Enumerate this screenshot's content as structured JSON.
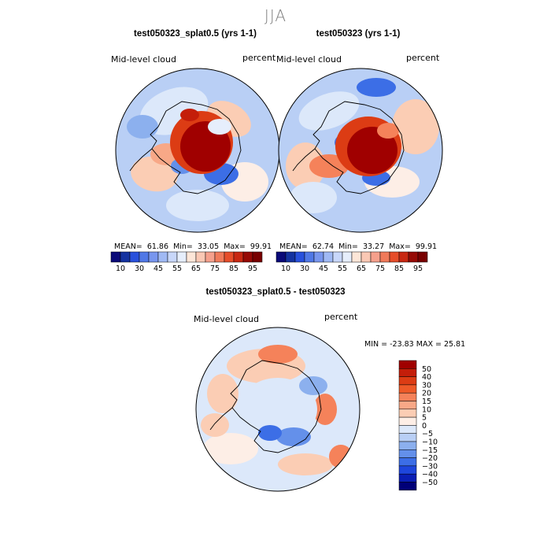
{
  "season": "JJA",
  "panels": [
    {
      "title": "test050323_splat0.5 (yrs 1-1)",
      "variable": "Mid-level cloud",
      "units": "percent",
      "stats": {
        "mean_label": "MEAN=",
        "mean": "61.86",
        "min_label": "Min=",
        "min": "33.05",
        "max_label": "Max=",
        "max": "99.91"
      }
    },
    {
      "title": "test050323 (yrs 1-1)",
      "variable": "Mid-level cloud",
      "units": "percent",
      "stats": {
        "mean_label": "MEAN=",
        "mean": "62.74",
        "min_label": "Min=",
        "min": "33.27",
        "max_label": "Max=",
        "max": "99.91"
      }
    },
    {
      "title": "test050323_splat0.5 - test050323",
      "variable": "Mid-level cloud",
      "units": "percent",
      "stats_line": "MIN = -23.83  MAX =  25.81"
    }
  ],
  "chart_data": [
    {
      "type": "heatmap",
      "projection": "south polar stereographic",
      "title": "test050323_splat0.5 (yrs 1-1)",
      "variable": "Mid-level cloud",
      "units": "percent",
      "mean": 61.86,
      "min": 33.05,
      "max": 99.91,
      "colorbar_levels": [
        10,
        30,
        45,
        55,
        65,
        75,
        85,
        95
      ],
      "colorbar_labels": [
        "10",
        "30",
        "45",
        "55",
        "65",
        "75",
        "85",
        "95"
      ],
      "colorbar_colors": [
        "#0a0a78",
        "#1432a0",
        "#2850dc",
        "#5078e6",
        "#7896ee",
        "#a0b9f4",
        "#c8d7fa",
        "#e6eefc",
        "#fde6d8",
        "#fac8b4",
        "#f5a08c",
        "#f07a5a",
        "#e64d2a",
        "#c82812",
        "#960a05",
        "#780000"
      ]
    },
    {
      "type": "heatmap",
      "projection": "south polar stereographic",
      "title": "test050323 (yrs 1-1)",
      "variable": "Mid-level cloud",
      "units": "percent",
      "mean": 62.74,
      "min": 33.27,
      "max": 99.91,
      "colorbar_levels": [
        10,
        30,
        45,
        55,
        65,
        75,
        85,
        95
      ],
      "colorbar_labels": [
        "10",
        "30",
        "45",
        "55",
        "65",
        "75",
        "85",
        "95"
      ],
      "colorbar_colors": [
        "#0a0a78",
        "#1432a0",
        "#2850dc",
        "#5078e6",
        "#7896ee",
        "#a0b9f4",
        "#c8d7fa",
        "#e6eefc",
        "#fde6d8",
        "#fac8b4",
        "#f5a08c",
        "#f07a5a",
        "#e64d2a",
        "#c82812",
        "#960a05",
        "#780000"
      ]
    },
    {
      "type": "heatmap",
      "projection": "south polar stereographic",
      "title": "test050323_splat0.5 - test050323",
      "variable": "Mid-level cloud",
      "units": "percent",
      "min": -23.83,
      "max": 25.81,
      "colorbar_labels": [
        "50",
        "40",
        "30",
        "20",
        "15",
        "10",
        "5",
        "0",
        "−5",
        "−10",
        "−15",
        "−20",
        "−30",
        "−40",
        "−50"
      ],
      "colorbar_colors": [
        "#a00000",
        "#c41e0a",
        "#dc3c14",
        "#ee5a28",
        "#f5825a",
        "#f8a887",
        "#fbcdb4",
        "#fdeee6",
        "#dce8fa",
        "#b9cff5",
        "#8cb0ee",
        "#6490ea",
        "#3c6ee6",
        "#1e46dc",
        "#0a1eb4",
        "#000078"
      ]
    }
  ]
}
